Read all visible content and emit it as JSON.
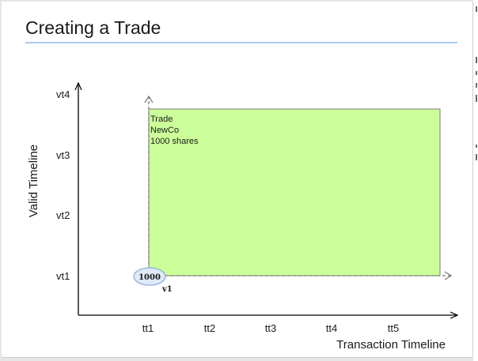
{
  "slide": {
    "title": "Creating a Trade"
  },
  "diagram": {
    "y_axis_title": "Valid Timeline",
    "x_axis_title": "Transaction Timeline",
    "y_ticks": [
      "vt1",
      "vt2",
      "vt3",
      "vt4"
    ],
    "x_ticks": [
      "tt1",
      "tt2",
      "tt3",
      "tt4",
      "tt5"
    ],
    "trade_box": {
      "lines": [
        "Trade",
        "NewCo",
        "1000 shares"
      ],
      "fill_color": "#ccff99",
      "border_color": "#777777"
    },
    "version_marker": {
      "value": "1000",
      "label": "v1",
      "fill_color": "#dfe9f7",
      "border_color": "#8aaedc"
    }
  },
  "colors": {
    "title_rule": "#a9c8ec",
    "axis": "#000000"
  }
}
